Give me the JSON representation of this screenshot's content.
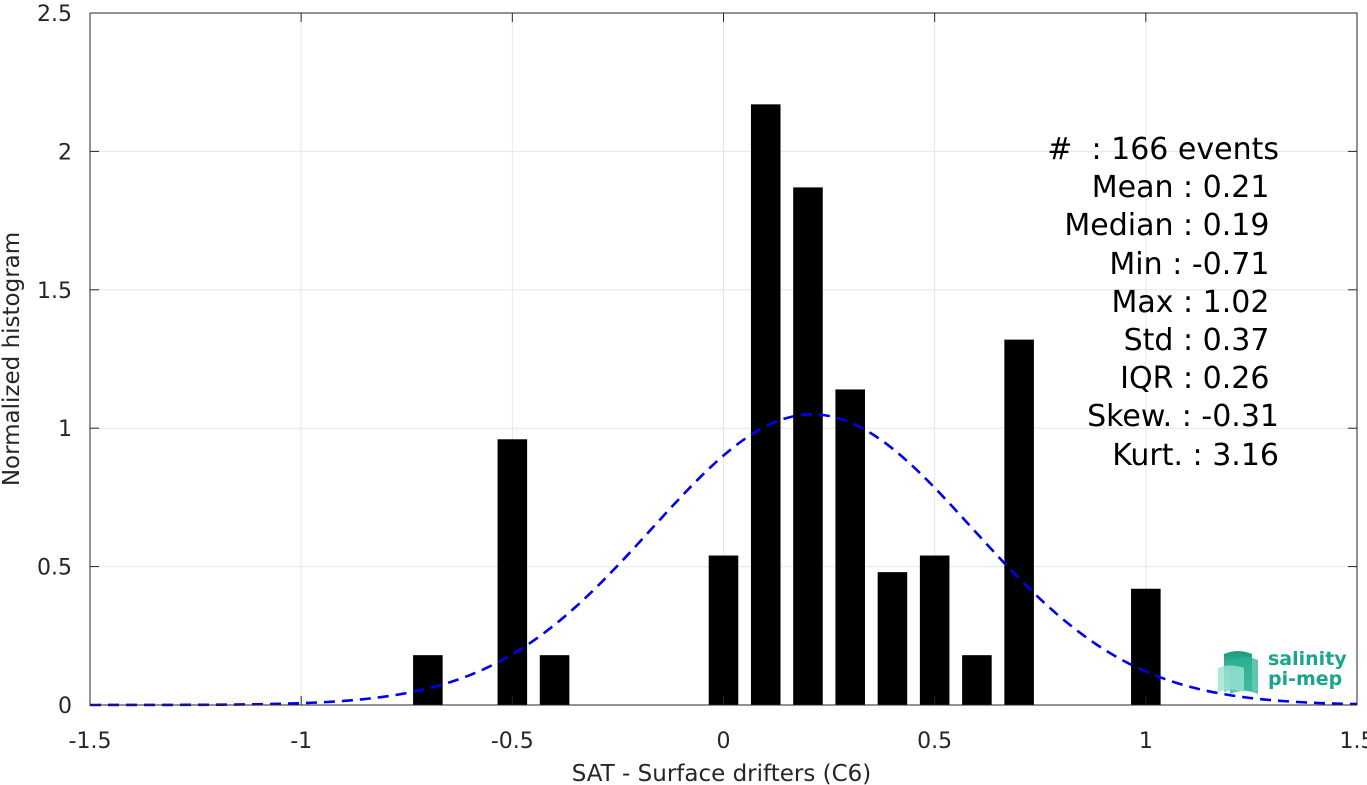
{
  "chart_data": {
    "type": "bar",
    "xlabel": "SAT - Surface drifters (C6)",
    "ylabel": "Normalized histogram",
    "xlim": [
      -1.5,
      1.5
    ],
    "ylim": [
      0,
      2.5
    ],
    "xticks": [
      -1.5,
      -1,
      -0.5,
      0,
      0.5,
      1,
      1.5
    ],
    "xtick_labels": [
      "-1.5",
      "-1",
      "-0.5",
      "0",
      "0.5",
      "1",
      "1.5"
    ],
    "yticks": [
      0,
      0.5,
      1,
      1.5,
      2,
      2.5
    ],
    "ytick_labels": [
      "0",
      "0.5",
      "1",
      "1.5",
      "2",
      "2.5"
    ],
    "grid": true,
    "bar_width": 0.07,
    "bar_color": "#000000",
    "bars": [
      {
        "x": -0.7,
        "y": 0.18
      },
      {
        "x": -0.5,
        "y": 0.96
      },
      {
        "x": -0.4,
        "y": 0.18
      },
      {
        "x": 0.0,
        "y": 0.54
      },
      {
        "x": 0.1,
        "y": 2.17
      },
      {
        "x": 0.2,
        "y": 1.87
      },
      {
        "x": 0.3,
        "y": 1.14
      },
      {
        "x": 0.4,
        "y": 0.48
      },
      {
        "x": 0.5,
        "y": 0.54
      },
      {
        "x": 0.6,
        "y": 0.18
      },
      {
        "x": 0.7,
        "y": 1.32
      },
      {
        "x": 1.0,
        "y": 0.42
      }
    ],
    "fit_curve": {
      "type": "gaussian",
      "mean": 0.21,
      "std": 0.38,
      "peak": 1.05,
      "x_range": [
        -1.5,
        1.5
      ],
      "color": "#0000ee",
      "style": "dashed"
    }
  },
  "stats": [
    "#  : 166 events",
    "Mean : 0.21 ",
    "Median : 0.19 ",
    "Min : -0.71 ",
    "Max : 1.02 ",
    "Std : 0.37 ",
    "IQR : 0.26 ",
    "Skew. : -0.31",
    "Kurt. : 3.16"
  ],
  "logo": {
    "line1": "salinity",
    "line2": "pi-mep",
    "color": "#1aa58c"
  }
}
